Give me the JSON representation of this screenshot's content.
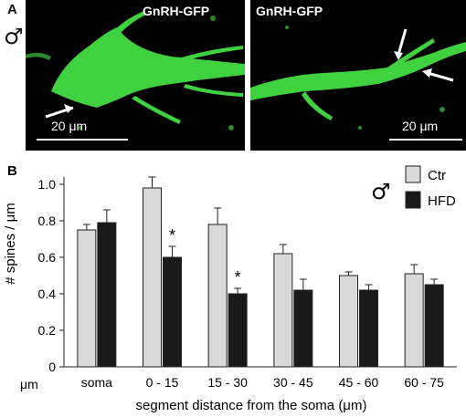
{
  "panel_a": {
    "letter": "A",
    "sex_symbol": "♂",
    "images": [
      {
        "title": "GnRH-GFP",
        "scale": "20 μm"
      },
      {
        "title": "GnRH-GFP",
        "scale": "20 μm"
      }
    ]
  },
  "panel_b": {
    "letter": "B",
    "sex_symbol": "♂",
    "unit_label": "μm"
  },
  "colors": {
    "ctr": "#d9d9d9",
    "hfd": "#1a1a1a",
    "gfp": "#3fd13f",
    "background": "#000000"
  },
  "chart_data": {
    "type": "bar",
    "categories": [
      "soma",
      "0 - 15",
      "15 - 30",
      "30 - 45",
      "45 - 60",
      "60 - 75"
    ],
    "series": [
      {
        "name": "Ctr",
        "values": [
          0.75,
          0.98,
          0.78,
          0.62,
          0.5,
          0.51
        ],
        "errors": [
          0.03,
          0.06,
          0.09,
          0.05,
          0.02,
          0.05
        ]
      },
      {
        "name": "HFD",
        "values": [
          0.79,
          0.6,
          0.4,
          0.42,
          0.42,
          0.45
        ],
        "errors": [
          0.07,
          0.06,
          0.03,
          0.06,
          0.03,
          0.03
        ]
      }
    ],
    "significance": [
      "",
      "*",
      "*",
      "",
      "",
      ""
    ],
    "ylabel": "# spines / μm",
    "xlabel": "segment distance from the soma (μm)",
    "ylim": [
      0,
      1.0
    ],
    "yticks": [
      "0",
      "0.2",
      "0.4",
      "0.6",
      "0.8",
      "1.0"
    ],
    "legend_position": "top-right"
  }
}
